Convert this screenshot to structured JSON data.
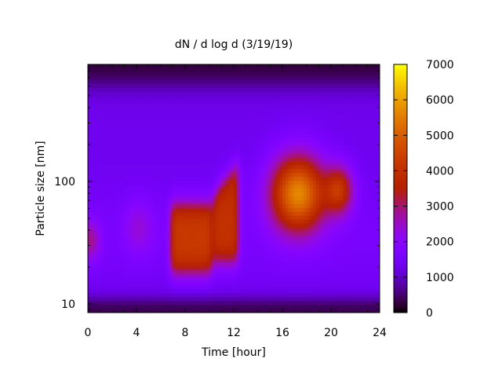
{
  "chart_data": {
    "type": "heatmap",
    "title": "dN / d log d (3/19/19)",
    "xlabel": "Time [hour]",
    "ylabel": "Particle size [nm]",
    "xlim": [
      0,
      24
    ],
    "ylim": [
      8.5,
      900
    ],
    "y_scale": "log",
    "x_ticks": [
      0,
      4,
      8,
      12,
      16,
      20,
      24
    ],
    "x_tick_labels": [
      "0",
      "4",
      "8",
      "12",
      "16",
      "20",
      "24"
    ],
    "y_ticks": [
      10,
      100
    ],
    "y_tick_labels": [
      "10",
      "100"
    ],
    "colorbar": {
      "min": 0,
      "max": 7000,
      "ticks": [
        0,
        1000,
        2000,
        3000,
        4000,
        5000,
        6000,
        7000
      ],
      "tick_labels": [
        "0",
        "1000",
        "2000",
        "3000",
        "4000",
        "5000",
        "6000",
        "7000"
      ],
      "colormap": "gnuplot-pm3d",
      "placement": "right"
    },
    "colors": {
      "low": "#000000",
      "mid": "#7f00ff",
      "high": "#ffff00"
    },
    "features": [
      {
        "name": "background",
        "time": [
          0,
          24
        ],
        "size_nm": [
          9,
          800
        ],
        "value": 1500
      },
      {
        "name": "lower-edge-low-count",
        "time": [
          0,
          24
        ],
        "size_nm": [
          8.5,
          11
        ],
        "value": 300
      },
      {
        "name": "upper-edge-low-count",
        "time": [
          0,
          24
        ],
        "size_nm": [
          600,
          900
        ],
        "value": 200
      },
      {
        "name": "early-mode",
        "time_center": 0.2,
        "size_center_nm": 33,
        "value": 2800
      },
      {
        "name": "morning-mode",
        "time_center": 4.2,
        "size_center_nm": 42,
        "value": 2300
      },
      {
        "name": "growth-band-1",
        "time": [
          6.8,
          10.2
        ],
        "size_nm": [
          18,
          65
        ],
        "value": 4200
      },
      {
        "name": "growth-band-2",
        "time": [
          10.3,
          12.4
        ],
        "size_nm": [
          22,
          140
        ],
        "value": 4000
      },
      {
        "name": "evening-peak",
        "time_center": 17.3,
        "size_center_nm": 80,
        "value": 5700
      },
      {
        "name": "night-mode",
        "time_center": 20.7,
        "size_center_nm": 85,
        "value": 3900
      }
    ]
  }
}
